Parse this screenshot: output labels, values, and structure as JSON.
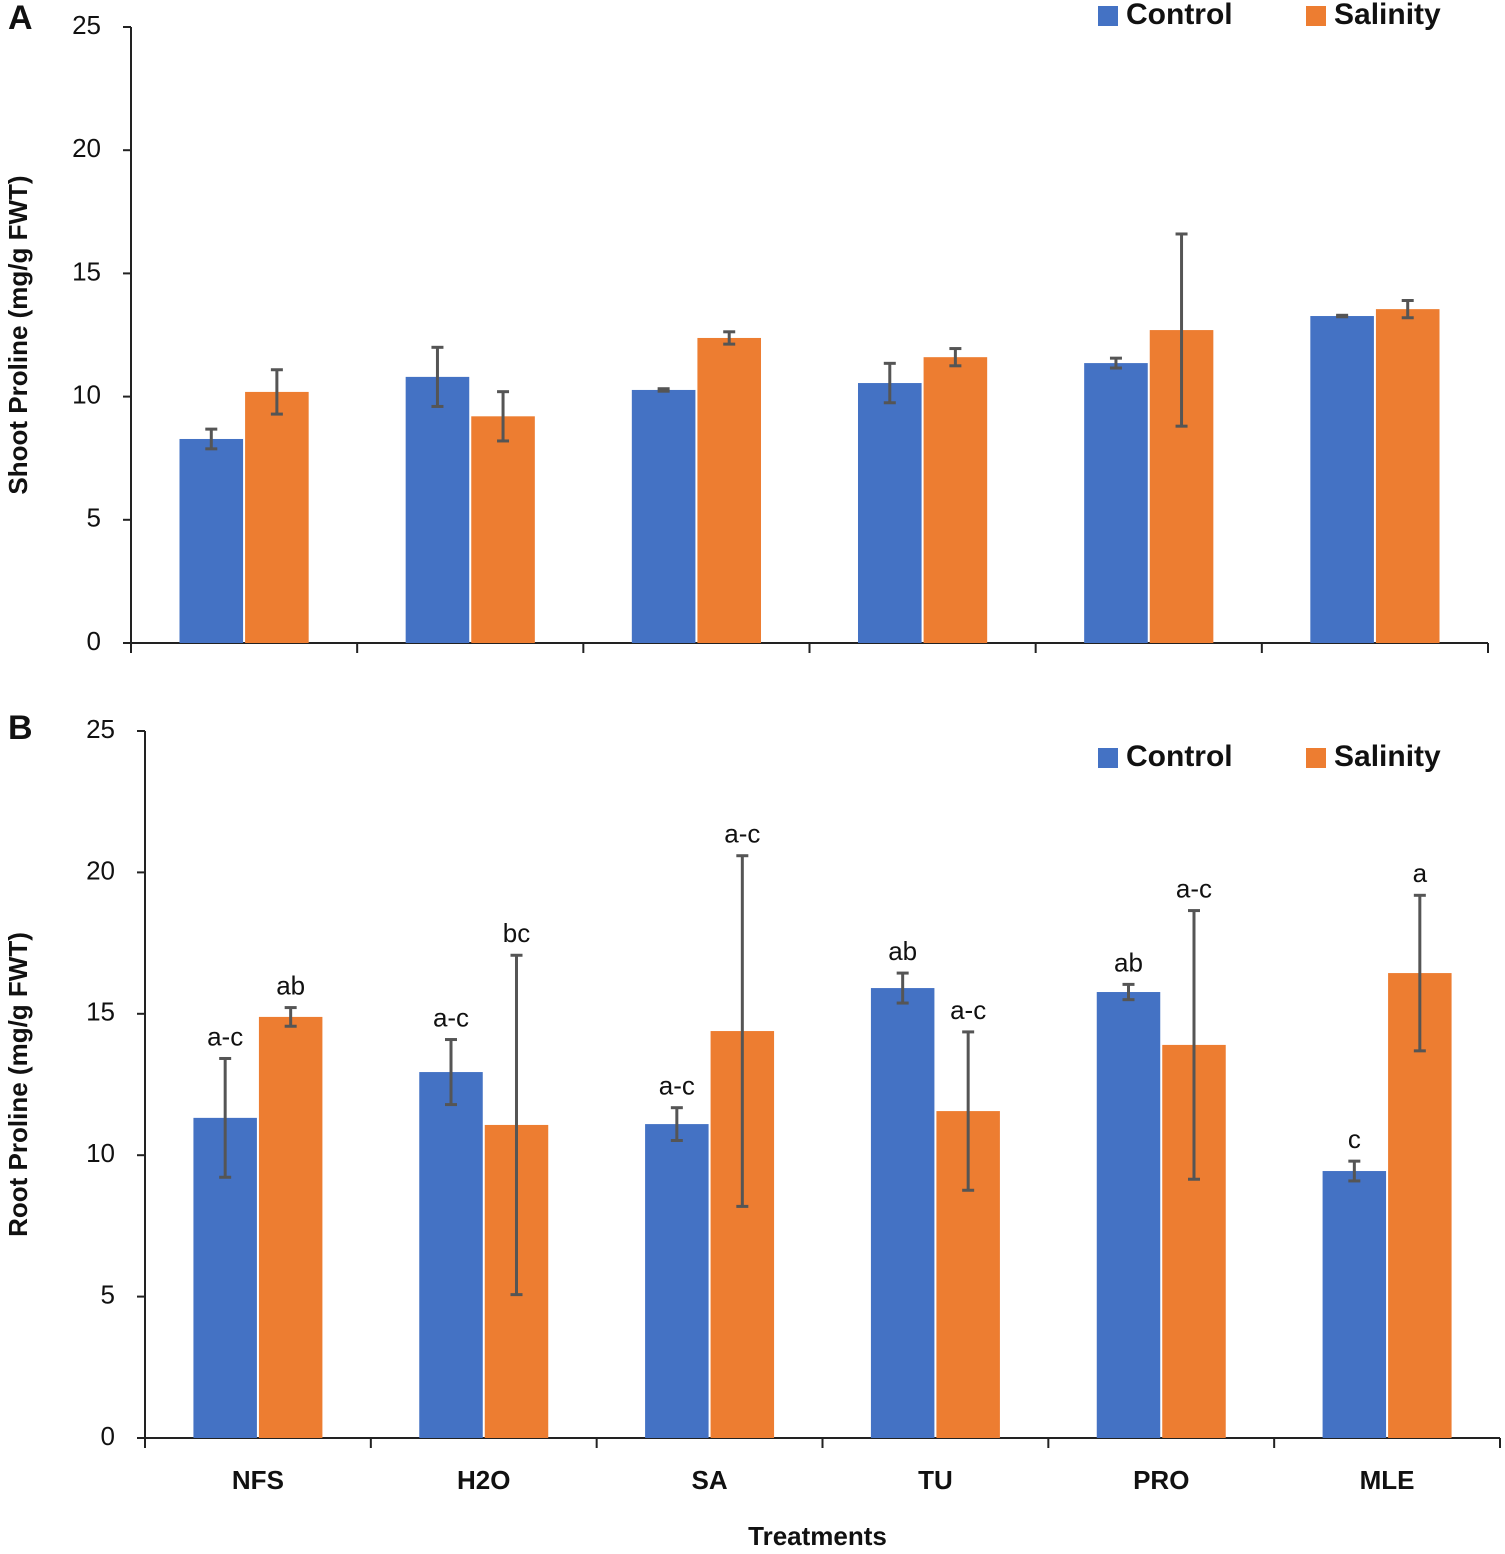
{
  "chart_data": [
    {
      "type": "bar",
      "panel": "A",
      "ylabel": "Shoot  Proline (mg/g FWT)",
      "categories": [
        null,
        null,
        null,
        null,
        null,
        null
      ],
      "ylim": [
        0,
        25
      ],
      "yticks": [
        0,
        5,
        10,
        15,
        20,
        25
      ],
      "series": [
        {
          "name": "Control",
          "color": "#4472c4",
          "values": [
            8.28,
            10.8,
            10.27,
            10.55,
            11.36,
            13.27
          ],
          "errors": [
            0.4,
            1.2,
            0.05,
            0.8,
            0.2,
            0.03
          ]
        },
        {
          "name": "Salinity",
          "color": "#ed7d31",
          "values": [
            10.19,
            9.2,
            12.38,
            11.6,
            12.7,
            13.55
          ],
          "errors": [
            0.9,
            1.0,
            0.25,
            0.35,
            3.9,
            0.35
          ]
        }
      ]
    },
    {
      "type": "bar",
      "panel": "B",
      "ylabel": "Root Proline (mg/g FWT)",
      "xlabel": "Treatments",
      "categories": [
        "NFS",
        "H2O",
        "SA",
        "TU",
        "PRO",
        "MLE"
      ],
      "ylim": [
        0,
        25
      ],
      "yticks": [
        0,
        5,
        10,
        15,
        20,
        25
      ],
      "series": [
        {
          "name": "Control",
          "color": "#4472c4",
          "values": [
            11.32,
            12.94,
            11.1,
            15.91,
            15.77,
            9.44
          ],
          "errors": [
            2.1,
            1.15,
            0.58,
            0.53,
            0.27,
            0.35
          ],
          "labels": [
            "a-c",
            "a-c",
            "a-c",
            "ab",
            "ab",
            "c"
          ]
        },
        {
          "name": "Salinity",
          "color": "#ed7d31",
          "values": [
            14.89,
            11.07,
            14.39,
            11.56,
            13.9,
            16.44
          ],
          "errors": [
            0.33,
            6.0,
            6.2,
            2.8,
            4.75,
            2.75
          ],
          "labels": [
            "ab",
            "bc",
            "a-c",
            "a-c",
            "a-c",
            "a"
          ]
        }
      ]
    }
  ]
}
